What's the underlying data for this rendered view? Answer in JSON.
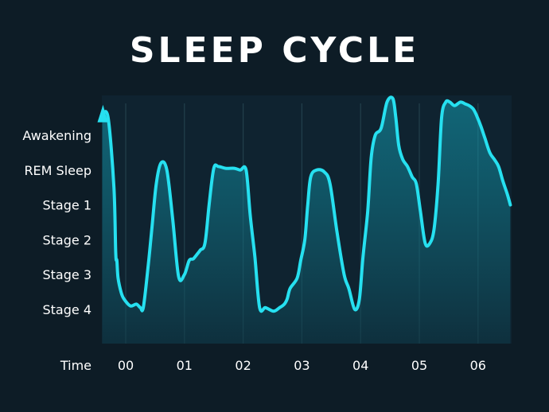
{
  "chart_data": {
    "type": "area",
    "title": "SLEEP CYCLE",
    "xlabel": "Time",
    "ylabel": "",
    "categories_y": [
      "Awakening",
      "REM Sleep",
      "Stage 1",
      "Stage 2",
      "Stage 3",
      "Stage 4"
    ],
    "x_ticks": [
      "00",
      "01",
      "02",
      "03",
      "04",
      "05",
      "06"
    ],
    "xlim": [
      -0.42,
      6.55
    ],
    "ylim": [
      -1.0,
      6.0
    ],
    "grid": true,
    "series": [
      {
        "x": [
          -0.4,
          -0.3,
          -0.2,
          -0.17,
          -0.15,
          -0.13,
          -0.08,
          -0.03,
          0.08,
          0.18,
          0.25,
          0.3,
          0.38,
          0.45,
          0.52,
          0.6,
          0.7,
          0.8,
          0.9,
          1.0,
          1.08,
          1.15,
          1.2,
          1.27,
          1.35,
          1.42,
          1.5,
          1.58,
          1.7,
          1.85,
          1.95,
          2.05,
          2.12,
          2.2,
          2.28,
          2.38,
          2.52,
          2.62,
          2.7,
          2.75,
          2.8,
          2.92,
          2.98,
          3.05,
          3.1,
          3.15,
          3.25,
          3.38,
          3.48,
          3.6,
          3.72,
          3.8,
          3.9,
          3.98,
          4.04,
          4.12,
          4.18,
          4.25,
          4.35,
          4.45,
          4.55,
          4.6,
          4.65,
          4.72,
          4.8,
          4.88,
          4.95,
          5.02,
          5.1,
          5.18,
          5.25,
          5.32,
          5.38,
          5.45,
          5.52,
          5.6,
          5.7,
          5.78,
          5.85,
          5.92,
          5.98,
          6.05,
          6.12,
          6.2,
          6.28,
          6.35,
          6.42,
          6.5,
          6.55
        ],
        "y": [
          5.6,
          5.5,
          3.5,
          1.6,
          1.4,
          0.9,
          0.5,
          0.3,
          0.1,
          0.15,
          0.05,
          0.05,
          1.2,
          2.4,
          3.6,
          4.2,
          4.0,
          2.6,
          0.95,
          1.0,
          1.4,
          1.45,
          1.55,
          1.7,
          1.9,
          3.0,
          4.05,
          4.1,
          4.05,
          4.05,
          4.0,
          4.0,
          2.7,
          1.5,
          0.05,
          0.05,
          -0.05,
          0.05,
          0.15,
          0.3,
          0.6,
          0.9,
          1.4,
          2.0,
          3.0,
          3.8,
          4.0,
          3.95,
          3.6,
          2.2,
          1.0,
          0.6,
          0.0,
          0.3,
          1.5,
          2.8,
          4.35,
          5.0,
          5.2,
          5.95,
          6.05,
          5.5,
          4.7,
          4.3,
          4.1,
          3.8,
          3.6,
          2.8,
          1.9,
          1.9,
          2.3,
          3.6,
          5.5,
          5.95,
          5.95,
          5.85,
          5.95,
          5.9,
          5.85,
          5.75,
          5.55,
          5.25,
          4.9,
          4.5,
          4.3,
          4.1,
          3.7,
          3.3,
          3.0
        ]
      }
    ]
  }
}
